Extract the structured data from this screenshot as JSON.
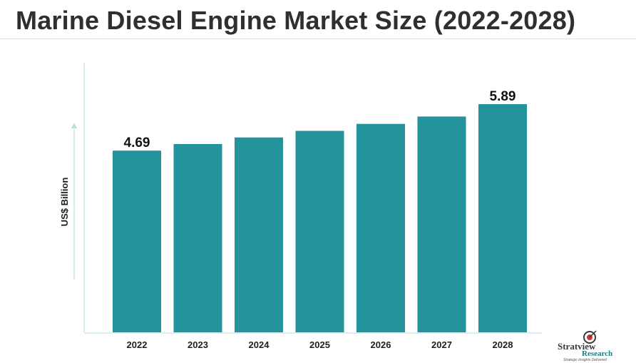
{
  "title": "Marine Diesel Engine Market Size (2022-2028)",
  "chart_data": {
    "type": "bar",
    "categories": [
      "2022",
      "2023",
      "2024",
      "2025",
      "2026",
      "2027",
      "2028"
    ],
    "values": [
      4.69,
      4.86,
      5.03,
      5.2,
      5.38,
      5.57,
      5.89
    ],
    "data_labels": [
      "4.69",
      "",
      "",
      "",
      "",
      "",
      "5.89"
    ],
    "title": "Marine Diesel Engine Market Size (2022-2028)",
    "xlabel": "",
    "ylabel": "US$ Billion",
    "ylim": [
      0,
      6.5
    ],
    "grid": false,
    "bar_color": "#25939c",
    "axis_color": "#b8dfe2"
  },
  "logo": {
    "name": "Stratview",
    "sub": "Research",
    "tagline": "Strategic Insights Delivered",
    "accent": "#d9322e"
  }
}
